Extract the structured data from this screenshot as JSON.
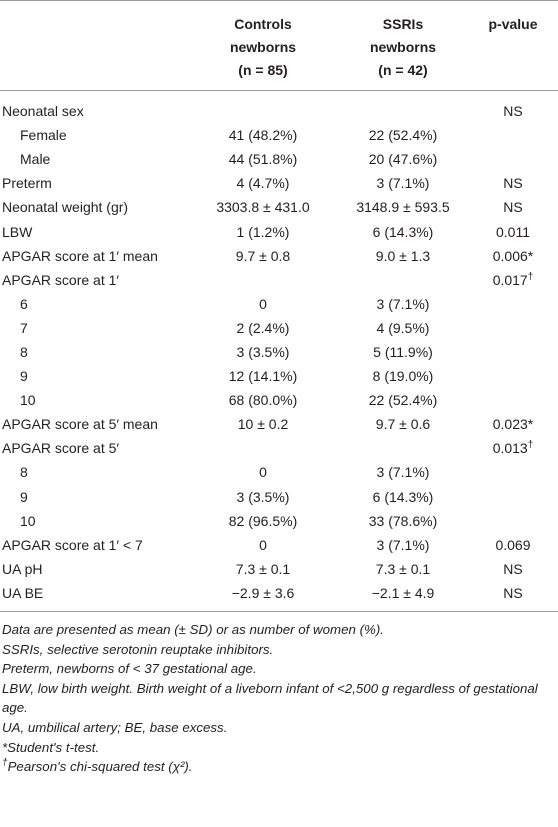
{
  "table": {
    "header": [
      {
        "lines": [
          "Controls",
          "newborns",
          "(n = 85)"
        ]
      },
      {
        "lines": [
          "SSRIs",
          "newborns",
          "(n = 42)"
        ]
      },
      {
        "lines": [
          "p-value"
        ]
      }
    ],
    "rows": [
      {
        "label": "Neonatal sex",
        "p": "NS",
        "sub": [
          {
            "label": "Female",
            "controls": "41 (48.2%)",
            "ssris": "22 (52.4%)"
          },
          {
            "label": "Male",
            "controls": "44 (51.8%)",
            "ssris": "20 (47.6%)"
          }
        ]
      },
      {
        "label": "Preterm",
        "controls": "4 (4.7%)",
        "ssris": "3 (7.1%)",
        "p": "NS"
      },
      {
        "label": "Neonatal weight (gr)",
        "controls": "3303.8 ± 431.0",
        "ssris": "3148.9 ± 593.5",
        "p": "NS"
      },
      {
        "label": "LBW",
        "controls": "1 (1.2%)",
        "ssris": "6 (14.3%)",
        "p": "0.011"
      },
      {
        "label": "APGAR score at 1′ mean",
        "controls": "9.7 ± 0.8",
        "ssris": "9.0 ± 1.3",
        "p": "0.006*"
      },
      {
        "label": "APGAR score at 1′",
        "p": "0.017",
        "p_sup": "†",
        "sub": [
          {
            "label": "6",
            "controls": "0",
            "ssris": "3 (7.1%)"
          },
          {
            "label": "7",
            "controls": "2 (2.4%)",
            "ssris": "4 (9.5%)"
          },
          {
            "label": "8",
            "controls": "3 (3.5%)",
            "ssris": "5 (11.9%)"
          },
          {
            "label": "9",
            "controls": "12 (14.1%)",
            "ssris": "8 (19.0%)"
          },
          {
            "label": "10",
            "controls": "68 (80.0%)",
            "ssris": "22 (52.4%)"
          }
        ]
      },
      {
        "label": "APGAR score at 5′ mean",
        "controls": "10 ± 0.2",
        "ssris": "9.7 ± 0.6",
        "p": "0.023*"
      },
      {
        "label": "APGAR score at 5′",
        "p": "0.013",
        "p_sup": "†",
        "sub": [
          {
            "label": "8",
            "controls": "0",
            "ssris": "3 (7.1%)"
          },
          {
            "label": "9",
            "controls": "3 (3.5%)",
            "ssris": "6 (14.3%)"
          },
          {
            "label": "10",
            "controls": "82 (96.5%)",
            "ssris": "33 (78.6%)"
          }
        ]
      },
      {
        "label": "APGAR score at 1′ < 7",
        "controls": "0",
        "ssris": "3 (7.1%)",
        "p": "0.069"
      },
      {
        "label": "UA pH",
        "controls": "7.3 ± 0.1",
        "ssris": "7.3 ± 0.1",
        "p": "NS"
      },
      {
        "label": "UA BE",
        "controls": "−2.9 ± 3.6",
        "ssris": "−2.1 ± 4.9",
        "p": "NS"
      }
    ],
    "footnotes": [
      {
        "text": "Data are presented as mean (± SD) or as number of women (%)."
      },
      {
        "text": "SSRIs, selective serotonin reuptake inhibitors."
      },
      {
        "text": "Preterm, newborns of < 37 gestational age."
      },
      {
        "text": "LBW, low birth weight. Birth weight of a liveborn infant of <2,500 g regardless of gestational age."
      },
      {
        "text": "UA, umbilical artery; BE, base excess."
      },
      {
        "text": "*Student's t-test."
      },
      {
        "mark": "†",
        "text": "Pearson's chi-squared test (χ²)."
      }
    ]
  }
}
